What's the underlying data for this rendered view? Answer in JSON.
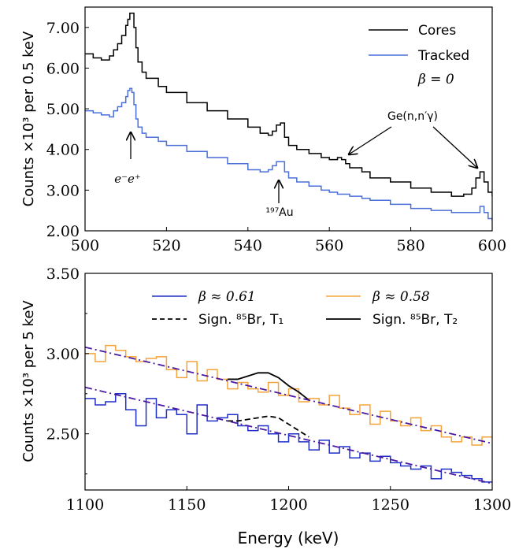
{
  "chart_data": [
    {
      "type": "line",
      "panel": "top",
      "title": "",
      "xlabel": "",
      "ylabel": "Counts ×10³ per 0.5 keV",
      "xlim": [
        500,
        600
      ],
      "ylim": [
        2.0,
        7.5
      ],
      "xticks": [
        500,
        520,
        540,
        560,
        580,
        600
      ],
      "xtick_labels": [
        "500",
        "520",
        "540",
        "560",
        "580",
        "600"
      ],
      "yticks": [
        2.0,
        3.0,
        4.0,
        5.0,
        6.0,
        7.0
      ],
      "ytick_labels": [
        "2.00",
        "3.00",
        "4.00",
        "5.00",
        "6.00",
        "7.00"
      ],
      "grid": false,
      "legend_position": "top-right",
      "legend_note": "β = 0",
      "series": [
        {
          "name": "Cores",
          "color": "#000000",
          "style": "steps",
          "x": [
            500,
            502,
            504,
            506,
            507,
            508,
            509,
            510,
            510.5,
            511,
            511.5,
            512,
            512.5,
            513,
            514,
            515,
            518,
            520,
            525,
            530,
            535,
            540,
            543,
            545,
            546,
            547,
            548,
            549,
            550,
            552,
            555,
            558,
            560,
            562,
            563,
            564,
            565,
            568,
            570,
            575,
            580,
            585,
            590,
            593,
            595,
            596,
            597,
            598,
            599,
            600
          ],
          "values": [
            6.35,
            6.25,
            6.2,
            6.3,
            6.45,
            6.6,
            6.8,
            7.05,
            7.2,
            7.35,
            7.35,
            7.0,
            6.5,
            6.15,
            5.9,
            5.75,
            5.55,
            5.4,
            5.15,
            4.95,
            4.75,
            4.55,
            4.4,
            4.35,
            4.45,
            4.6,
            4.65,
            4.3,
            4.1,
            4.0,
            3.9,
            3.8,
            3.75,
            3.8,
            3.75,
            3.65,
            3.55,
            3.45,
            3.3,
            3.2,
            3.05,
            2.95,
            2.85,
            2.9,
            3.05,
            3.3,
            3.45,
            3.2,
            2.95,
            2.85
          ]
        },
        {
          "name": "Tracked",
          "color": "#4a6fd8",
          "style": "steps",
          "x": [
            500,
            502,
            504,
            506,
            507,
            508,
            509,
            510,
            510.5,
            511,
            511.5,
            512,
            512.5,
            513,
            514,
            515,
            518,
            520,
            525,
            530,
            535,
            540,
            543,
            545,
            546,
            547,
            548,
            549,
            550,
            552,
            555,
            558,
            560,
            562,
            565,
            568,
            570,
            575,
            580,
            585,
            590,
            595,
            597,
            598,
            599,
            600
          ],
          "values": [
            4.95,
            4.9,
            4.85,
            4.8,
            4.95,
            5.05,
            5.15,
            5.3,
            5.45,
            5.5,
            5.4,
            5.1,
            4.75,
            4.55,
            4.4,
            4.3,
            4.2,
            4.1,
            3.95,
            3.8,
            3.65,
            3.5,
            3.45,
            3.5,
            3.6,
            3.7,
            3.7,
            3.45,
            3.3,
            3.2,
            3.1,
            3.0,
            2.95,
            2.9,
            2.85,
            2.8,
            2.75,
            2.65,
            2.55,
            2.5,
            2.45,
            2.45,
            2.6,
            2.45,
            2.3,
            2.25
          ]
        }
      ],
      "annotations": [
        {
          "text": "e⁻e⁺",
          "x": 511,
          "y": 2.8,
          "arrow_to": [
            511,
            4.5
          ]
        },
        {
          "text": "¹⁹⁷Au",
          "x": 547.5,
          "y": 2.3,
          "arrow_to": [
            547.5,
            3.2
          ]
        },
        {
          "text": "Ge(n,n′γ)",
          "x": 579,
          "y": 4.9,
          "arrow_to": [
            [
              563,
              3.85
            ],
            [
              596,
              3.45
            ]
          ]
        }
      ]
    },
    {
      "type": "line",
      "panel": "bottom",
      "title": "",
      "xlabel": "Energy (keV)",
      "ylabel": "Counts ×10³ per 5 keV",
      "xlim": [
        1100,
        1300
      ],
      "ylim": [
        2.15,
        3.5
      ],
      "xticks": [
        1100,
        1150,
        1200,
        1250,
        1300
      ],
      "xtick_labels": [
        "1100",
        "1150",
        "1200",
        "1250",
        "1300"
      ],
      "yticks": [
        2.5,
        3.0,
        3.5
      ],
      "ytick_labels": [
        "2.50",
        "3.00",
        "3.50"
      ],
      "minor_yticks": [
        2.25,
        2.75,
        3.25
      ],
      "grid": false,
      "legend_position": "top",
      "series": [
        {
          "name": "β ≈ 0.61",
          "color": "#1f2fc8",
          "style": "steps",
          "x": [
            1100,
            1105,
            1110,
            1115,
            1120,
            1125,
            1130,
            1135,
            1140,
            1145,
            1150,
            1155,
            1160,
            1165,
            1170,
            1175,
            1180,
            1185,
            1190,
            1195,
            1200,
            1205,
            1210,
            1215,
            1220,
            1225,
            1230,
            1235,
            1240,
            1245,
            1250,
            1255,
            1260,
            1265,
            1270,
            1275,
            1280,
            1285,
            1290,
            1295
          ],
          "values": [
            2.72,
            2.68,
            2.7,
            2.75,
            2.65,
            2.55,
            2.72,
            2.6,
            2.65,
            2.62,
            2.5,
            2.68,
            2.58,
            2.6,
            2.62,
            2.55,
            2.52,
            2.55,
            2.5,
            2.45,
            2.5,
            2.45,
            2.4,
            2.46,
            2.38,
            2.42,
            2.35,
            2.38,
            2.33,
            2.36,
            2.32,
            2.3,
            2.28,
            2.3,
            2.22,
            2.28,
            2.26,
            2.24,
            2.22,
            2.2
          ]
        },
        {
          "name": "β ≈ 0.58",
          "color": "#f5a33b",
          "style": "steps",
          "x": [
            1100,
            1105,
            1110,
            1115,
            1120,
            1125,
            1130,
            1135,
            1140,
            1145,
            1150,
            1155,
            1160,
            1165,
            1170,
            1175,
            1180,
            1185,
            1190,
            1195,
            1200,
            1205,
            1210,
            1215,
            1220,
            1225,
            1230,
            1235,
            1240,
            1245,
            1250,
            1255,
            1260,
            1265,
            1270,
            1275,
            1280,
            1285,
            1290,
            1295
          ],
          "values": [
            3.0,
            2.95,
            3.05,
            3.02,
            2.98,
            2.95,
            2.97,
            2.98,
            2.9,
            2.85,
            2.95,
            2.83,
            2.9,
            2.84,
            2.78,
            2.82,
            2.78,
            2.76,
            2.82,
            2.74,
            2.78,
            2.7,
            2.72,
            2.68,
            2.74,
            2.66,
            2.62,
            2.68,
            2.56,
            2.64,
            2.58,
            2.55,
            2.6,
            2.52,
            2.55,
            2.48,
            2.45,
            2.48,
            2.43,
            2.48
          ]
        },
        {
          "name": "Sign. ⁸⁵Br, T₁",
          "color": "#000000",
          "style": "dashed",
          "x": [
            1170,
            1175,
            1180,
            1185,
            1190,
            1195,
            1200,
            1205,
            1210
          ],
          "values": [
            2.58,
            2.58,
            2.59,
            2.6,
            2.61,
            2.6,
            2.56,
            2.52,
            2.48
          ]
        },
        {
          "name": "Sign. ⁸⁵Br, T₂",
          "color": "#000000",
          "style": "solid",
          "x": [
            1170,
            1175,
            1180,
            1185,
            1190,
            1195,
            1200,
            1205,
            1210
          ],
          "values": [
            2.84,
            2.84,
            2.86,
            2.88,
            2.88,
            2.85,
            2.8,
            2.76,
            2.71
          ]
        },
        {
          "name": "",
          "color": "#4b1aa3",
          "style": "dashdot",
          "x": [
            1100,
            1300
          ],
          "values": [
            3.04,
            2.44
          ]
        },
        {
          "name": "",
          "color": "#4b1aa3",
          "style": "dashdot",
          "x": [
            1100,
            1300
          ],
          "values": [
            2.79,
            2.19
          ]
        }
      ]
    }
  ]
}
